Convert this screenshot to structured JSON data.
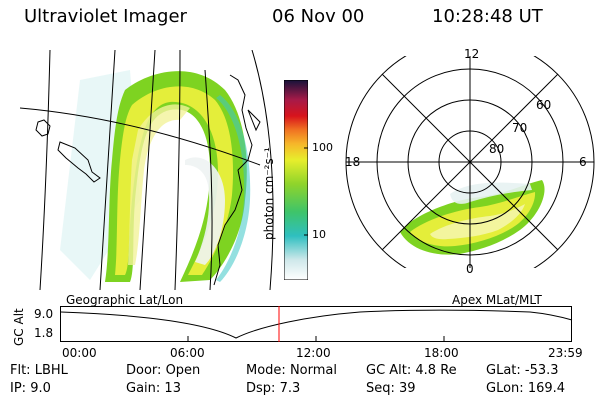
{
  "header": {
    "instrument": "Ultraviolet Imager",
    "date": "06 Nov 00",
    "time": "10:28:48 UT"
  },
  "colorbar": {
    "unit_label": "photon cm⁻²s⁻¹",
    "ticks": [
      "100",
      "10"
    ]
  },
  "polar_plot": {
    "mlt_labels": {
      "top": "12",
      "left": "18",
      "right": "6",
      "bottom": "0"
    },
    "lat_labels": [
      "60",
      "70",
      "80"
    ]
  },
  "strip": {
    "left_title": "Geographic Lat/Lon",
    "right_title": "Apex MLat/MLT",
    "y_axis_label": "GC Alt",
    "y_ticks": [
      "9.0",
      "1.8"
    ],
    "x_ticks": [
      "00:00",
      "06:00",
      "12:00",
      "18:00",
      "23:59"
    ],
    "current_time_marker": "10:28:48",
    "colors": {
      "marker": "#ff0000"
    }
  },
  "footer": {
    "row1": [
      {
        "label": "Flt:",
        "value": "LBHL"
      },
      {
        "label": "Door:",
        "value": "Open"
      },
      {
        "label": "Mode:",
        "value": "Normal"
      },
      {
        "label": "GC Alt:",
        "value": "4.8 Re"
      },
      {
        "label": "GLat:",
        "value": "-53.3"
      }
    ],
    "row2": [
      {
        "label": "IP:",
        "value": "9.0"
      },
      {
        "label": "Gain:",
        "value": "13"
      },
      {
        "label": "Dsp:",
        "value": "7.3"
      },
      {
        "label": "Seq:",
        "value": "39"
      },
      {
        "label": "GLon:",
        "value": "169.4"
      }
    ]
  }
}
